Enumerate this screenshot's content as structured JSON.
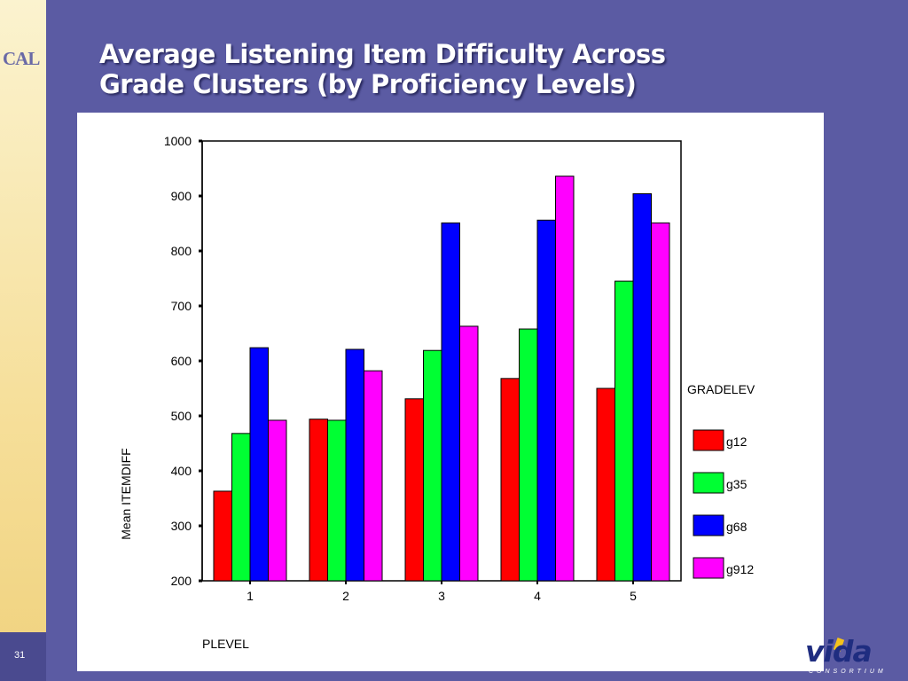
{
  "slide": {
    "logo_text": "CAL",
    "title_line1": "Average Listening Item Difficulty Across",
    "title_line2": "Grade Clusters (by Proficiency Levels)",
    "page_number": "31",
    "footer_logo_text": "vida",
    "footer_logo_sub": "CONSORTIUM"
  },
  "chart_data": {
    "type": "bar",
    "title": "",
    "xlabel": "PLEVEL",
    "ylabel": "Mean ITEMDIFF",
    "ylim": [
      200,
      1000
    ],
    "yticks": [
      200,
      300,
      400,
      500,
      600,
      700,
      800,
      900,
      1000
    ],
    "categories": [
      "1",
      "2",
      "3",
      "4",
      "5"
    ],
    "legend_title": "GRADELEV",
    "legend_position": "right",
    "grid": false,
    "series": [
      {
        "name": "g12",
        "color": "#ff0000",
        "values": [
          363,
          494,
          531,
          568,
          550
        ]
      },
      {
        "name": "g35",
        "color": "#00ff33",
        "values": [
          468,
          492,
          619,
          658,
          745
        ]
      },
      {
        "name": "g68",
        "color": "#0000ff",
        "values": [
          624,
          621,
          851,
          856,
          904
        ]
      },
      {
        "name": "g912",
        "color": "#ff00ff",
        "values": [
          492,
          582,
          663,
          936,
          851
        ]
      }
    ]
  }
}
